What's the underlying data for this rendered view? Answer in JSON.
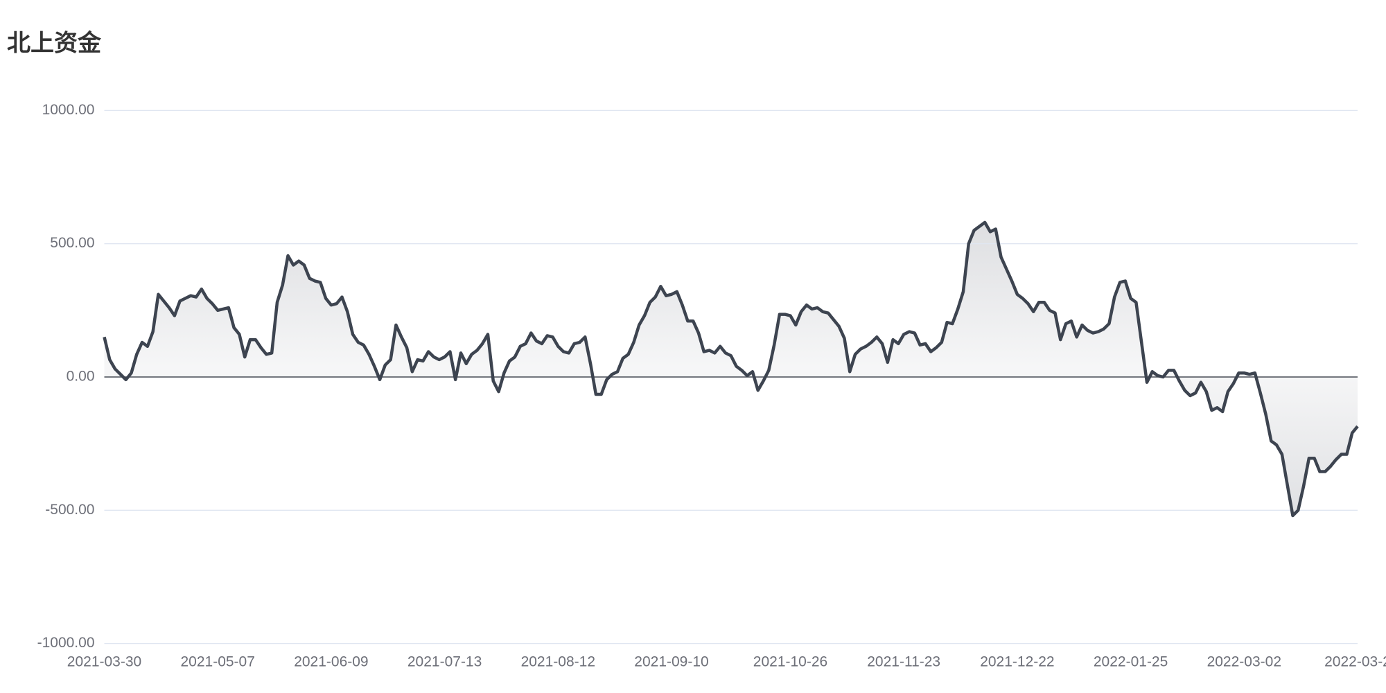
{
  "chart_data": {
    "type": "line",
    "title": "北上资金",
    "color": "#3d4450",
    "area_color": "#dcdde0",
    "grid": true,
    "ylim": [
      -1000,
      1000
    ],
    "yticks": [
      {
        "value": -1000,
        "label": "-1000.00"
      },
      {
        "value": -500,
        "label": "-500.00"
      },
      {
        "value": 0,
        "label": "0.00"
      },
      {
        "value": 500,
        "label": "500.00"
      },
      {
        "value": 1000,
        "label": "1000.00"
      }
    ],
    "categories": [
      "2021-03-30",
      null,
      null,
      null,
      null,
      null,
      null,
      null,
      null,
      null,
      null,
      null,
      null,
      null,
      null,
      null,
      null,
      null,
      null,
      null,
      null,
      "2021-05-07",
      null,
      null,
      null,
      null,
      null,
      null,
      null,
      null,
      null,
      null,
      null,
      null,
      null,
      null,
      null,
      null,
      null,
      null,
      null,
      null,
      "2021-06-09",
      null,
      null,
      null,
      null,
      null,
      null,
      null,
      null,
      null,
      null,
      null,
      null,
      null,
      null,
      null,
      null,
      null,
      null,
      null,
      null,
      "2021-07-13",
      null,
      null,
      null,
      null,
      null,
      null,
      null,
      null,
      null,
      null,
      null,
      null,
      null,
      null,
      null,
      null,
      null,
      null,
      null,
      null,
      "2021-08-12",
      null,
      null,
      null,
      null,
      null,
      null,
      null,
      null,
      null,
      null,
      null,
      null,
      null,
      null,
      null,
      null,
      null,
      null,
      null,
      null,
      "2021-09-10",
      null,
      null,
      null,
      null,
      null,
      null,
      null,
      null,
      null,
      null,
      null,
      null,
      null,
      null,
      null,
      null,
      null,
      null,
      null,
      null,
      null,
      "2021-10-26",
      null,
      null,
      null,
      null,
      null,
      null,
      null,
      null,
      null,
      null,
      null,
      null,
      null,
      null,
      null,
      null,
      null,
      null,
      null,
      null,
      "2021-11-23",
      null,
      null,
      null,
      null,
      null,
      null,
      null,
      null,
      null,
      null,
      null,
      null,
      null,
      null,
      null,
      null,
      null,
      null,
      null,
      null,
      "2021-12-22",
      null,
      null,
      null,
      null,
      null,
      null,
      null,
      null,
      null,
      null,
      null,
      null,
      null,
      null,
      null,
      null,
      null,
      null,
      null,
      null,
      "2022-01-25",
      null,
      null,
      null,
      null,
      null,
      null,
      null,
      null,
      null,
      null,
      null,
      null,
      null,
      null,
      null,
      null,
      null,
      null,
      null,
      null,
      "2022-03-02",
      null,
      null,
      null,
      null,
      null,
      null,
      null,
      null,
      null,
      null,
      null,
      null,
      null,
      null,
      null,
      null,
      null,
      null,
      null,
      null,
      "2022-03-2"
    ],
    "values": [
      150,
      65,
      30,
      10,
      -10,
      15,
      85,
      130,
      115,
      170,
      310,
      285,
      260,
      230,
      285,
      295,
      305,
      300,
      330,
      295,
      275,
      250,
      255,
      260,
      185,
      160,
      75,
      140,
      140,
      110,
      85,
      90,
      280,
      345,
      455,
      420,
      435,
      420,
      370,
      360,
      355,
      295,
      270,
      275,
      300,
      245,
      160,
      130,
      120,
      85,
      40,
      -10,
      45,
      65,
      195,
      150,
      110,
      20,
      65,
      60,
      95,
      75,
      65,
      75,
      95,
      -10,
      90,
      50,
      85,
      100,
      125,
      160,
      -15,
      -55,
      15,
      60,
      75,
      115,
      125,
      165,
      135,
      125,
      155,
      150,
      115,
      95,
      90,
      125,
      130,
      150,
      50,
      -65,
      -65,
      -10,
      10,
      20,
      70,
      85,
      130,
      195,
      230,
      280,
      300,
      340,
      305,
      310,
      320,
      270,
      210,
      210,
      165,
      95,
      100,
      90,
      115,
      90,
      80,
      40,
      25,
      5,
      20,
      -50,
      -15,
      25,
      120,
      235,
      235,
      230,
      195,
      245,
      270,
      255,
      260,
      245,
      240,
      215,
      190,
      145,
      20,
      85,
      105,
      115,
      130,
      150,
      125,
      55,
      140,
      125,
      160,
      170,
      165,
      120,
      125,
      95,
      110,
      130,
      205,
      200,
      255,
      320,
      500,
      550,
      565,
      580,
      545,
      555,
      450,
      405,
      360,
      310,
      295,
      275,
      245,
      280,
      280,
      250,
      240,
      140,
      200,
      210,
      150,
      195,
      175,
      165,
      170,
      180,
      200,
      300,
      355,
      360,
      295,
      280,
      130,
      -20,
      20,
      5,
      0,
      25,
      25,
      -15,
      -50,
      -70,
      -60,
      -20,
      -55,
      -125,
      -115,
      -130,
      -55,
      -25,
      15,
      15,
      10,
      15,
      -60,
      -140,
      -240,
      -255,
      -290,
      -405,
      -520,
      -500,
      -410,
      -305,
      -305,
      -355,
      -355,
      -335,
      -310,
      -290,
      -290,
      -210,
      -185
    ]
  }
}
